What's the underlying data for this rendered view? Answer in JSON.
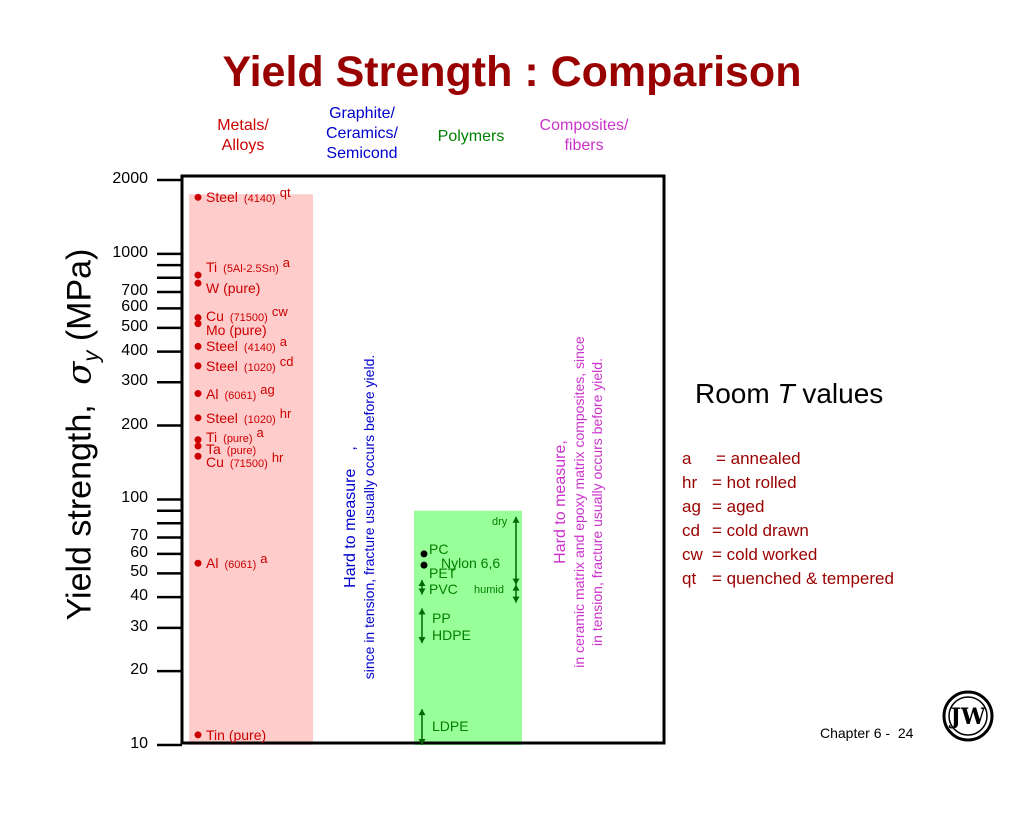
{
  "title": "Yield Strength : Comparison",
  "categories": [
    {
      "label_lines": [
        "Metals/",
        "Alloys"
      ],
      "color": "#cc0000"
    },
    {
      "label_lines": [
        "Graphite/",
        "Ceramics/",
        "Semicond"
      ],
      "color": "#0000cc"
    },
    {
      "label_lines": [
        "Polymers"
      ],
      "color": "#008000"
    },
    {
      "label_lines": [
        "Composites/",
        "fibers"
      ],
      "color": "#cc33cc"
    }
  ],
  "y_axis_label": "Yield strength,",
  "y_axis_symbol": "σ",
  "y_axis_subscript": "y",
  "y_axis_unit": "(MPa)",
  "room_temp": {
    "prefix": "Room ",
    "italic": "T",
    "suffix": " values"
  },
  "ceramics_note": {
    "line1": "Hard to measure",
    "comma": ",",
    "line2": "since in tension, fracture usually occurs before yield."
  },
  "composites_note": {
    "line1": "Hard to measure,",
    "line2": "in ceramic matrix and epoxy matrix composites, since",
    "line3": "in tension, fracture usually occurs before yield."
  },
  "legend": [
    {
      "code": "a",
      "meaning": "= annealed"
    },
    {
      "code": "hr",
      "meaning": "= hot rolled"
    },
    {
      "code": "ag",
      "meaning": "= aged"
    },
    {
      "code": "cd",
      "meaning": "= cold drawn"
    },
    {
      "code": "cw",
      "meaning": "= cold worked"
    },
    {
      "code": "qt",
      "meaning": "= quenched & tempered"
    }
  ],
  "footer": {
    "chapter": "Chapter 6 -",
    "page": "24"
  },
  "logo_text": "JW",
  "colors": {
    "metals_band": "#ffcccc",
    "polymers_band": "#99ff99",
    "metals_text": "#cc0000",
    "polymers_text": "#008000",
    "title": "#990000"
  },
  "chart_data": {
    "type": "scatter",
    "y_scale": "log",
    "ylim": [
      10,
      2000
    ],
    "ylabel": "Yield strength, σy (MPa)",
    "y_tick_labels": [
      {
        "value": 2000,
        "label": "2000"
      },
      {
        "value": 1000,
        "label": "1000"
      },
      {
        "value": 700,
        "label": "700"
      },
      {
        "value": 600,
        "label": "600"
      },
      {
        "value": 500,
        "label": "500"
      },
      {
        "value": 400,
        "label": "400"
      },
      {
        "value": 300,
        "label": "300"
      },
      {
        "value": 200,
        "label": "200"
      },
      {
        "value": 100,
        "label": "100"
      },
      {
        "value": 70,
        "label": "70"
      },
      {
        "value": 60,
        "label": "60"
      },
      {
        "value": 50,
        "label": "50"
      },
      {
        "value": 40,
        "label": "40"
      },
      {
        "value": 30,
        "label": "30"
      },
      {
        "value": 20,
        "label": "20"
      },
      {
        "value": 10,
        "label": "10"
      }
    ],
    "metals_range": [
      10,
      1750
    ],
    "polymers_range": [
      10,
      90
    ],
    "metals": [
      {
        "name": "Steel",
        "spec": "(4140)",
        "cond": "qt",
        "value": 1700
      },
      {
        "name": "Ti",
        "spec": "(5Al-2.5Sn)",
        "cond": "a",
        "value": 820
      },
      {
        "name": "W (pure)",
        "spec": "",
        "cond": "",
        "value": 760
      },
      {
        "name": "Cu",
        "spec": "(71500)",
        "cond": "cw",
        "value": 550
      },
      {
        "name": "Mo (pure)",
        "spec": "",
        "cond": "",
        "value": 520
      },
      {
        "name": "Steel",
        "spec": "(4140)",
        "cond": "a",
        "value": 420
      },
      {
        "name": "Steel",
        "spec": "(1020)",
        "cond": "cd",
        "value": 350
      },
      {
        "name": "Al",
        "spec": "(6061)",
        "cond": "ag",
        "value": 270
      },
      {
        "name": "Steel",
        "spec": "(1020)",
        "cond": "hr",
        "value": 215
      },
      {
        "name": "Ti",
        "spec": "(pure)",
        "cond": "a",
        "value": 175
      },
      {
        "name": "Ta",
        "spec": "(pure)",
        "cond": "",
        "value": 165
      },
      {
        "name": "Cu",
        "spec": "(71500)",
        "cond": "hr",
        "value": 150
      },
      {
        "name": "Al",
        "spec": "(6061)",
        "cond": "a",
        "value": 55
      },
      {
        "name": "Tin (pure)",
        "spec": "",
        "cond": "",
        "value": 11
      }
    ],
    "polymers": [
      {
        "name": "PC",
        "value": 63
      },
      {
        "name": "Nylon 6,6",
        "value": 55
      },
      {
        "name": "PET",
        "value": 50
      },
      {
        "name": "PVC",
        "value": 43
      },
      {
        "name": "PP",
        "value": 33
      },
      {
        "name": "HDPE",
        "value": 28
      },
      {
        "name": "LDPE",
        "value": 12
      }
    ],
    "polymer_range_notes": [
      {
        "label": "dry",
        "range": [
          45,
          85
        ]
      },
      {
        "label": "humid",
        "range": [
          40,
          45
        ]
      }
    ]
  }
}
